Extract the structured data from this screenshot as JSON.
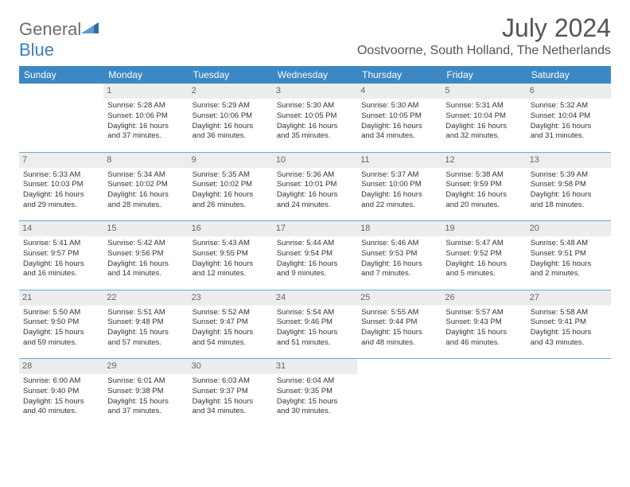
{
  "logo": {
    "word1": "General",
    "word2": "Blue"
  },
  "title": "July 2024",
  "location": "Oostvoorne, South Holland, The Netherlands",
  "colors": {
    "header_bg": "#3b88c4",
    "header_text": "#ffffff",
    "daynum_bg": "#eceded",
    "daynum_text": "#666666",
    "rule": "#6fa7ce",
    "body_text": "#333333",
    "title_text": "#555555",
    "logo_gray": "#6c6c6c",
    "logo_blue": "#3b7fb6"
  },
  "day_headers": [
    "Sunday",
    "Monday",
    "Tuesday",
    "Wednesday",
    "Thursday",
    "Friday",
    "Saturday"
  ],
  "weeks": [
    [
      null,
      {
        "n": "1",
        "sr": "Sunrise: 5:28 AM",
        "ss": "Sunset: 10:06 PM",
        "d1": "Daylight: 16 hours",
        "d2": "and 37 minutes."
      },
      {
        "n": "2",
        "sr": "Sunrise: 5:29 AM",
        "ss": "Sunset: 10:06 PM",
        "d1": "Daylight: 16 hours",
        "d2": "and 36 minutes."
      },
      {
        "n": "3",
        "sr": "Sunrise: 5:30 AM",
        "ss": "Sunset: 10:05 PM",
        "d1": "Daylight: 16 hours",
        "d2": "and 35 minutes."
      },
      {
        "n": "4",
        "sr": "Sunrise: 5:30 AM",
        "ss": "Sunset: 10:05 PM",
        "d1": "Daylight: 16 hours",
        "d2": "and 34 minutes."
      },
      {
        "n": "5",
        "sr": "Sunrise: 5:31 AM",
        "ss": "Sunset: 10:04 PM",
        "d1": "Daylight: 16 hours",
        "d2": "and 32 minutes."
      },
      {
        "n": "6",
        "sr": "Sunrise: 5:32 AM",
        "ss": "Sunset: 10:04 PM",
        "d1": "Daylight: 16 hours",
        "d2": "and 31 minutes."
      }
    ],
    [
      {
        "n": "7",
        "sr": "Sunrise: 5:33 AM",
        "ss": "Sunset: 10:03 PM",
        "d1": "Daylight: 16 hours",
        "d2": "and 29 minutes."
      },
      {
        "n": "8",
        "sr": "Sunrise: 5:34 AM",
        "ss": "Sunset: 10:02 PM",
        "d1": "Daylight: 16 hours",
        "d2": "and 28 minutes."
      },
      {
        "n": "9",
        "sr": "Sunrise: 5:35 AM",
        "ss": "Sunset: 10:02 PM",
        "d1": "Daylight: 16 hours",
        "d2": "and 26 minutes."
      },
      {
        "n": "10",
        "sr": "Sunrise: 5:36 AM",
        "ss": "Sunset: 10:01 PM",
        "d1": "Daylight: 16 hours",
        "d2": "and 24 minutes."
      },
      {
        "n": "11",
        "sr": "Sunrise: 5:37 AM",
        "ss": "Sunset: 10:00 PM",
        "d1": "Daylight: 16 hours",
        "d2": "and 22 minutes."
      },
      {
        "n": "12",
        "sr": "Sunrise: 5:38 AM",
        "ss": "Sunset: 9:59 PM",
        "d1": "Daylight: 16 hours",
        "d2": "and 20 minutes."
      },
      {
        "n": "13",
        "sr": "Sunrise: 5:39 AM",
        "ss": "Sunset: 9:58 PM",
        "d1": "Daylight: 16 hours",
        "d2": "and 18 minutes."
      }
    ],
    [
      {
        "n": "14",
        "sr": "Sunrise: 5:41 AM",
        "ss": "Sunset: 9:57 PM",
        "d1": "Daylight: 16 hours",
        "d2": "and 16 minutes."
      },
      {
        "n": "15",
        "sr": "Sunrise: 5:42 AM",
        "ss": "Sunset: 9:56 PM",
        "d1": "Daylight: 16 hours",
        "d2": "and 14 minutes."
      },
      {
        "n": "16",
        "sr": "Sunrise: 5:43 AM",
        "ss": "Sunset: 9:55 PM",
        "d1": "Daylight: 16 hours",
        "d2": "and 12 minutes."
      },
      {
        "n": "17",
        "sr": "Sunrise: 5:44 AM",
        "ss": "Sunset: 9:54 PM",
        "d1": "Daylight: 16 hours",
        "d2": "and 9 minutes."
      },
      {
        "n": "18",
        "sr": "Sunrise: 5:46 AM",
        "ss": "Sunset: 9:53 PM",
        "d1": "Daylight: 16 hours",
        "d2": "and 7 minutes."
      },
      {
        "n": "19",
        "sr": "Sunrise: 5:47 AM",
        "ss": "Sunset: 9:52 PM",
        "d1": "Daylight: 16 hours",
        "d2": "and 5 minutes."
      },
      {
        "n": "20",
        "sr": "Sunrise: 5:48 AM",
        "ss": "Sunset: 9:51 PM",
        "d1": "Daylight: 16 hours",
        "d2": "and 2 minutes."
      }
    ],
    [
      {
        "n": "21",
        "sr": "Sunrise: 5:50 AM",
        "ss": "Sunset: 9:50 PM",
        "d1": "Daylight: 15 hours",
        "d2": "and 59 minutes."
      },
      {
        "n": "22",
        "sr": "Sunrise: 5:51 AM",
        "ss": "Sunset: 9:48 PM",
        "d1": "Daylight: 15 hours",
        "d2": "and 57 minutes."
      },
      {
        "n": "23",
        "sr": "Sunrise: 5:52 AM",
        "ss": "Sunset: 9:47 PM",
        "d1": "Daylight: 15 hours",
        "d2": "and 54 minutes."
      },
      {
        "n": "24",
        "sr": "Sunrise: 5:54 AM",
        "ss": "Sunset: 9:46 PM",
        "d1": "Daylight: 15 hours",
        "d2": "and 51 minutes."
      },
      {
        "n": "25",
        "sr": "Sunrise: 5:55 AM",
        "ss": "Sunset: 9:44 PM",
        "d1": "Daylight: 15 hours",
        "d2": "and 48 minutes."
      },
      {
        "n": "26",
        "sr": "Sunrise: 5:57 AM",
        "ss": "Sunset: 9:43 PM",
        "d1": "Daylight: 15 hours",
        "d2": "and 46 minutes."
      },
      {
        "n": "27",
        "sr": "Sunrise: 5:58 AM",
        "ss": "Sunset: 9:41 PM",
        "d1": "Daylight: 15 hours",
        "d2": "and 43 minutes."
      }
    ],
    [
      {
        "n": "28",
        "sr": "Sunrise: 6:00 AM",
        "ss": "Sunset: 9:40 PM",
        "d1": "Daylight: 15 hours",
        "d2": "and 40 minutes."
      },
      {
        "n": "29",
        "sr": "Sunrise: 6:01 AM",
        "ss": "Sunset: 9:38 PM",
        "d1": "Daylight: 15 hours",
        "d2": "and 37 minutes."
      },
      {
        "n": "30",
        "sr": "Sunrise: 6:03 AM",
        "ss": "Sunset: 9:37 PM",
        "d1": "Daylight: 15 hours",
        "d2": "and 34 minutes."
      },
      {
        "n": "31",
        "sr": "Sunrise: 6:04 AM",
        "ss": "Sunset: 9:35 PM",
        "d1": "Daylight: 15 hours",
        "d2": "and 30 minutes."
      },
      null,
      null,
      null
    ]
  ]
}
